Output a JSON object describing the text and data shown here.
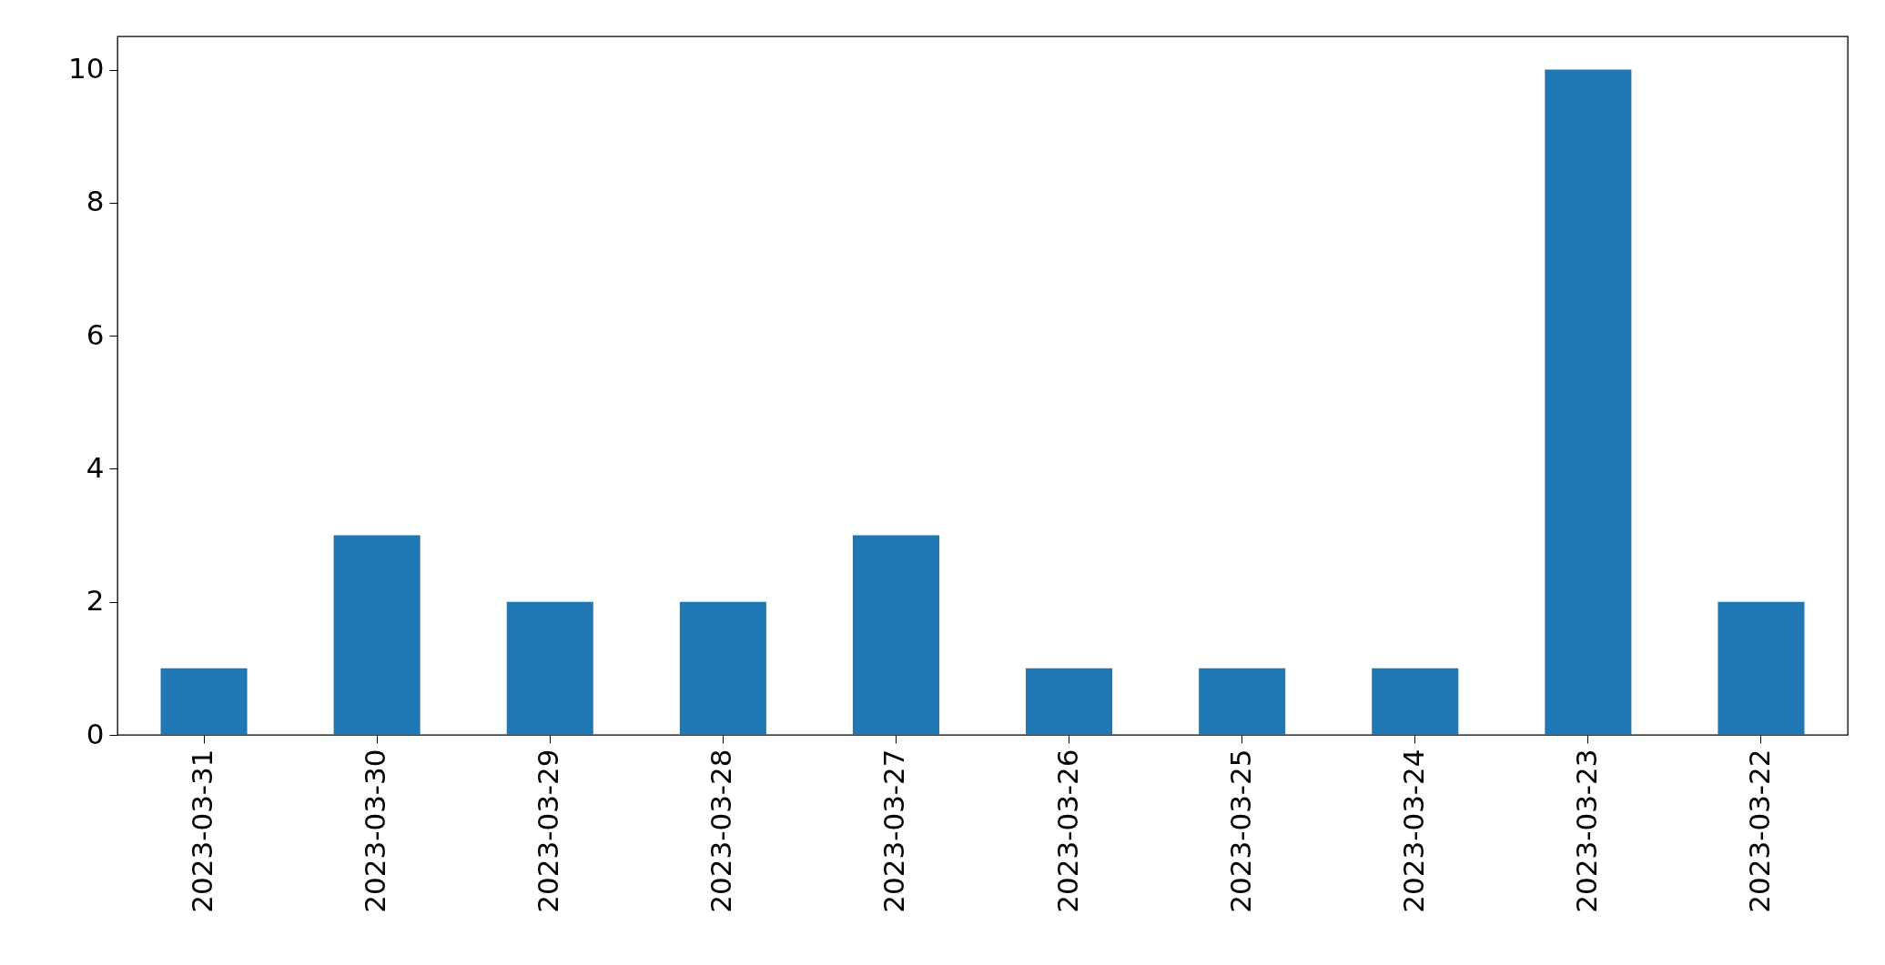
{
  "chart_data": {
    "type": "bar",
    "categories": [
      "2023-03-31",
      "2023-03-30",
      "2023-03-29",
      "2023-03-28",
      "2023-03-27",
      "2023-03-26",
      "2023-03-25",
      "2023-03-24",
      "2023-03-23",
      "2023-03-22"
    ],
    "values": [
      1,
      3,
      2,
      2,
      3,
      1,
      1,
      1,
      10,
      2
    ],
    "color": "#1f77b4",
    "ylim": [
      0,
      10.5
    ],
    "yticks": [
      0,
      2,
      4,
      6,
      8,
      10
    ],
    "grid": false
  }
}
